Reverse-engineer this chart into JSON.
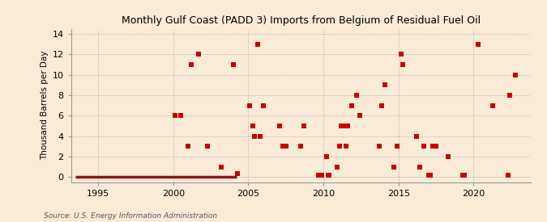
{
  "title": "Monthly Gulf Coast (PADD 3) Imports from Belgium of Residual Fuel Oil",
  "ylabel": "Thousand Barrels per Day",
  "source": "Source: U.S. Energy Information Administration",
  "background_color": "#faebd7",
  "marker_color": "#cc0000",
  "zero_line_color": "#8b1a1a",
  "xlim": [
    1993.2,
    2023.8
  ],
  "ylim": [
    -0.5,
    14.5
  ],
  "yticks": [
    0,
    2,
    4,
    6,
    8,
    10,
    12,
    14
  ],
  "xticks": [
    1995,
    2000,
    2005,
    2010,
    2015,
    2020
  ],
  "nonzero_points": [
    [
      2000.1,
      6
    ],
    [
      2000.5,
      6
    ],
    [
      2001.0,
      3
    ],
    [
      2001.2,
      11
    ],
    [
      2001.7,
      12
    ],
    [
      2002.3,
      3
    ],
    [
      2003.2,
      1
    ],
    [
      2004.0,
      11
    ],
    [
      2004.3,
      0.3
    ],
    [
      2005.1,
      7
    ],
    [
      2005.3,
      5
    ],
    [
      2005.4,
      4
    ],
    [
      2005.6,
      13
    ],
    [
      2005.8,
      4
    ],
    [
      2006.0,
      7
    ],
    [
      2007.1,
      5
    ],
    [
      2007.3,
      3
    ],
    [
      2007.5,
      3
    ],
    [
      2008.5,
      3
    ],
    [
      2008.7,
      5
    ],
    [
      2009.7,
      0.2
    ],
    [
      2009.9,
      0.2
    ],
    [
      2010.2,
      2
    ],
    [
      2010.3,
      0.2
    ],
    [
      2010.4,
      0.2
    ],
    [
      2010.9,
      1
    ],
    [
      2011.1,
      3
    ],
    [
      2011.2,
      5
    ],
    [
      2011.4,
      5
    ],
    [
      2011.5,
      3
    ],
    [
      2011.6,
      5
    ],
    [
      2011.9,
      7
    ],
    [
      2012.2,
      8
    ],
    [
      2012.4,
      6
    ],
    [
      2013.7,
      3
    ],
    [
      2013.9,
      7
    ],
    [
      2014.1,
      9
    ],
    [
      2014.7,
      1
    ],
    [
      2014.9,
      3
    ],
    [
      2015.2,
      12
    ],
    [
      2015.3,
      11
    ],
    [
      2016.2,
      4
    ],
    [
      2016.4,
      1
    ],
    [
      2016.7,
      3
    ],
    [
      2017.0,
      0.2
    ],
    [
      2017.1,
      0.2
    ],
    [
      2017.3,
      3
    ],
    [
      2017.5,
      3
    ],
    [
      2018.3,
      2
    ],
    [
      2019.3,
      0.2
    ],
    [
      2019.4,
      0.2
    ],
    [
      2020.3,
      13
    ],
    [
      2021.3,
      7
    ],
    [
      2022.3,
      0.2
    ],
    [
      2022.4,
      8
    ],
    [
      2022.8,
      10
    ]
  ],
  "zero_segments": [
    [
      1993.5,
      2004.2
    ]
  ]
}
